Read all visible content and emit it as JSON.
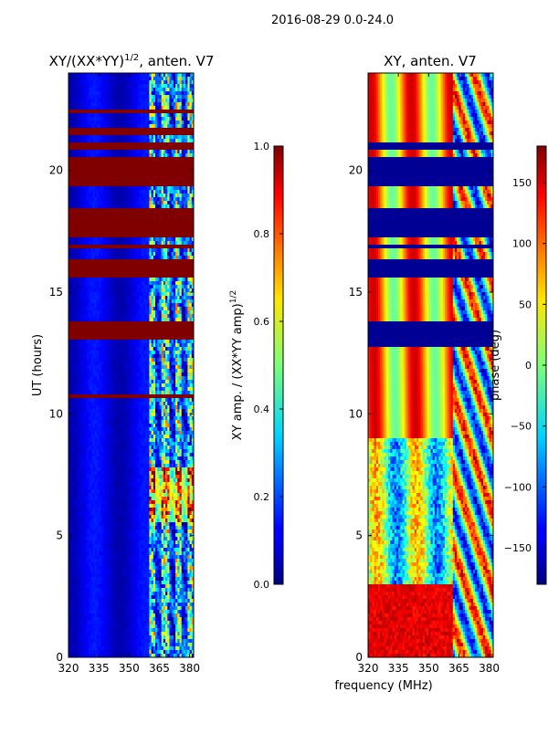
{
  "figure": {
    "suptitle": "2016-08-29 0.0-24.0",
    "shared_xlabel": "frequency (MHz)"
  },
  "chart_data": [
    {
      "type": "heatmap",
      "title": "XY/(XX*YY)",
      "title_superscript": "1/2",
      "title_suffix": ", anten. V7",
      "xlabel": "",
      "ylabel": "UT (hours)",
      "xlim": [
        320,
        382
      ],
      "ylim": [
        0,
        24
      ],
      "xticks": [
        320,
        335,
        350,
        365,
        380
      ],
      "yticks": [
        0,
        5,
        10,
        15,
        20
      ],
      "colorbar": {
        "label": "XY amp. / (XX*YY amp)",
        "label_superscript": "1/2",
        "range": [
          0.0,
          1.0
        ],
        "ticks": [
          "0.0",
          "0.2",
          "0.4",
          "0.6",
          "0.8",
          "1.0"
        ],
        "tick_values": [
          0.0,
          0.2,
          0.4,
          0.6,
          0.8,
          1.0
        ]
      },
      "flagged_bands_hours": [
        [
          13.0,
          13.85
        ],
        [
          15.6,
          16.3
        ],
        [
          16.8,
          17.0
        ],
        [
          17.3,
          18.5
        ],
        [
          19.3,
          20.6
        ],
        [
          20.9,
          21.2
        ],
        [
          21.4,
          21.75
        ],
        [
          22.4,
          22.5
        ],
        [
          10.6,
          10.75
        ]
      ]
    },
    {
      "type": "heatmap",
      "title": "XY, anten. V7",
      "xlabel": "",
      "ylabel": "",
      "xlim": [
        320,
        382
      ],
      "ylim": [
        0,
        24
      ],
      "xticks": [
        320,
        335,
        350,
        365,
        380
      ],
      "yticks": [
        0,
        5,
        10,
        15,
        20
      ],
      "colorbar": {
        "label": "phase (deg)",
        "range": [
          -180,
          180
        ],
        "ticks": [
          "−150",
          "−100",
          "−50",
          "0",
          "50",
          "100",
          "150"
        ],
        "tick_values": [
          -150,
          -100,
          -50,
          0,
          50,
          100,
          150
        ]
      },
      "flagged_bands_hours": [
        [
          12.8,
          13.8
        ],
        [
          15.6,
          16.3
        ],
        [
          16.8,
          17.0
        ],
        [
          17.3,
          18.5
        ],
        [
          19.3,
          20.6
        ],
        [
          20.9,
          21.2
        ]
      ]
    }
  ],
  "colors": {
    "flag_low": "#00007f",
    "flag_high": "#7f0000"
  }
}
